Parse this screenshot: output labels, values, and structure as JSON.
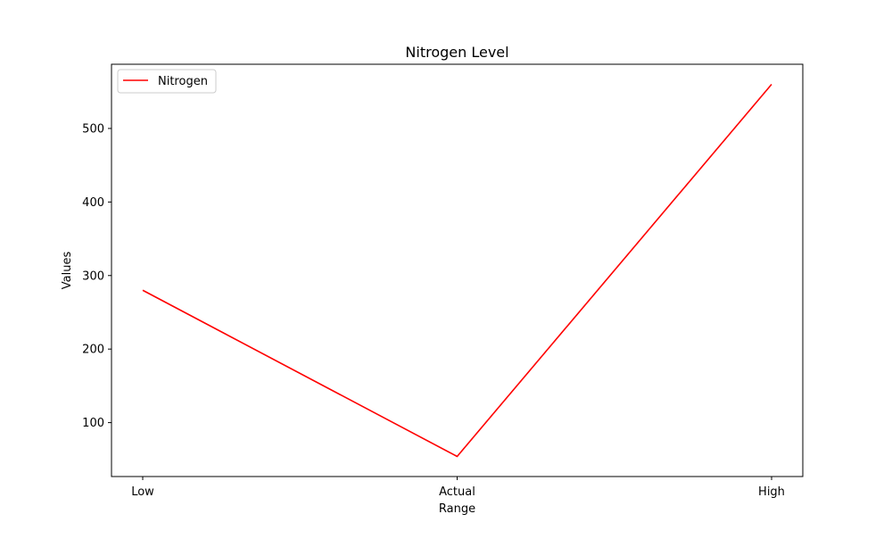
{
  "chart_data": {
    "type": "line",
    "title": "Nitrogen Level",
    "xlabel": "Range",
    "ylabel": "Values",
    "categories": [
      "Low",
      "Actual",
      "High"
    ],
    "series": [
      {
        "name": "Nitrogen",
        "values": [
          280,
          54,
          560
        ],
        "color": "#ff0000"
      }
    ],
    "ylim": [
      26.7,
      587.3
    ],
    "yticks": [
      100,
      200,
      300,
      400,
      500
    ],
    "grid": false,
    "legend": "upper-left"
  }
}
